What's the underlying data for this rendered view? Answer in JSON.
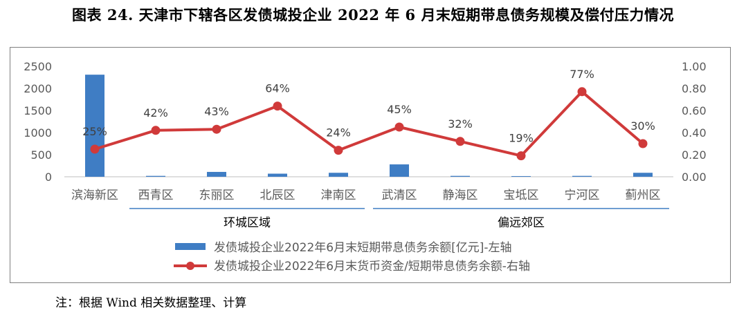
{
  "title": "图表 24. 天津市下辖各区发债城投企业 2022 年 6 月末短期带息债务规模及偿付压力情况",
  "note": "注：根据 Wind 相关数据整理、计算",
  "colors": {
    "bar": "#3f7dc4",
    "line": "#d03a3a",
    "group_line": "#3f7dc4",
    "axis_text": "#595959"
  },
  "chart_data": {
    "type": "bar",
    "categories": [
      "滨海新区",
      "西青区",
      "东丽区",
      "北辰区",
      "津南区",
      "武清区",
      "静海区",
      "宝坻区",
      "宁河区",
      "蓟州区"
    ],
    "series": [
      {
        "name": "发债城投企业2022年6月末短期带息债务余额[亿元]-左轴",
        "type": "bar",
        "axis": "left",
        "values": [
          2310,
          20,
          110,
          70,
          90,
          280,
          20,
          15,
          20,
          90
        ]
      },
      {
        "name": "发债城投企业2022年6月末货币资金/短期带息债务余额-右轴",
        "type": "line",
        "axis": "right",
        "values": [
          0.25,
          0.42,
          0.43,
          0.64,
          0.24,
          0.45,
          0.32,
          0.19,
          0.77,
          0.3
        ],
        "labels": [
          "25%",
          "42%",
          "43%",
          "64%",
          "24%",
          "45%",
          "32%",
          "19%",
          "77%",
          "30%"
        ]
      }
    ],
    "y_left": {
      "min": 0,
      "max": 2500,
      "ticks": [
        "0",
        "500",
        "1000",
        "1500",
        "2000",
        "2500"
      ]
    },
    "y_right": {
      "min": 0,
      "max": 1.0,
      "ticks": [
        "0.00",
        "0.20",
        "0.40",
        "0.60",
        "0.80",
        "1.00"
      ]
    },
    "groups": [
      {
        "label": "环城区域",
        "from": 1,
        "to": 4
      },
      {
        "label": "偏远郊区",
        "from": 5,
        "to": 9
      }
    ],
    "legend_position": "bottom",
    "grid": false
  }
}
